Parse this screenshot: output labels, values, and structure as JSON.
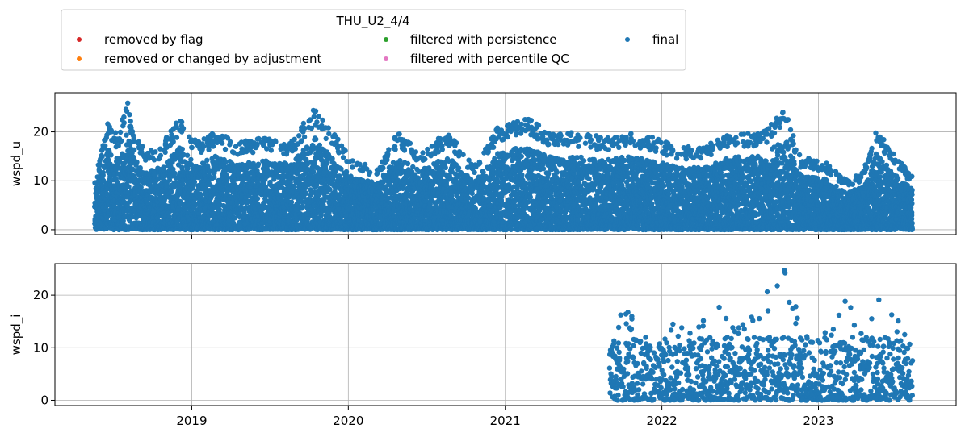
{
  "legend": {
    "title": "THU_U2_4/4",
    "entries": [
      {
        "label": "removed by flag",
        "color": "#d62728"
      },
      {
        "label": "removed or changed by adjustment",
        "color": "#ff7f0e"
      },
      {
        "label": "filtered with persistence",
        "color": "#2ca02c"
      },
      {
        "label": "filtered with percentile QC",
        "color": "#e377c2"
      },
      {
        "label": "final",
        "color": "#1f77b4"
      }
    ],
    "placement": "top-center, outside axes"
  },
  "chart_data": [
    {
      "type": "scatter",
      "ylabel": "wspd_u",
      "xlabel": "",
      "x_type": "date",
      "xlim": [
        "2018-02-16",
        "2023-11-18"
      ],
      "ylim": [
        -1,
        28
      ],
      "yticks": [
        0,
        10,
        20
      ],
      "xticks": [
        "2019",
        "2020",
        "2021",
        "2022",
        "2023"
      ],
      "grid": true,
      "series": [
        {
          "name": "final",
          "color": "#1f77b4",
          "date_range": [
            "2018-05-20",
            "2023-08-08"
          ],
          "envelope_max": [
            [
              "2018-05-20",
              10
            ],
            [
              "2018-06-01",
              15
            ],
            [
              "2018-06-20",
              22
            ],
            [
              "2018-07-15",
              19
            ],
            [
              "2018-08-03",
              27
            ],
            [
              "2018-08-20",
              19
            ],
            [
              "2018-09-20",
              16
            ],
            [
              "2018-10-20",
              17
            ],
            [
              "2018-12-05",
              23
            ],
            [
              "2019-01-15",
              18
            ],
            [
              "2019-02-25",
              20
            ],
            [
              "2019-04-20",
              18
            ],
            [
              "2019-06-20",
              19
            ],
            [
              "2019-08-20",
              18
            ],
            [
              "2019-10-15",
              25
            ],
            [
              "2019-11-25",
              20
            ],
            [
              "2020-01-15",
              14
            ],
            [
              "2020-03-10",
              13
            ],
            [
              "2020-04-25",
              20
            ],
            [
              "2020-06-15",
              16
            ],
            [
              "2020-08-20",
              20
            ],
            [
              "2020-10-20",
              13
            ],
            [
              "2020-12-15",
              21
            ],
            [
              "2021-01-20",
              22
            ],
            [
              "2021-02-20",
              23
            ],
            [
              "2021-04-15",
              20
            ],
            [
              "2021-06-15",
              20
            ],
            [
              "2021-08-15",
              19
            ],
            [
              "2021-10-15",
              20
            ],
            [
              "2021-12-10",
              19
            ],
            [
              "2022-02-10",
              17
            ],
            [
              "2022-04-10",
              17
            ],
            [
              "2022-06-15",
              20
            ],
            [
              "2022-08-25",
              20
            ],
            [
              "2022-10-15",
              25
            ],
            [
              "2022-11-20",
              15
            ],
            [
              "2023-01-15",
              14
            ],
            [
              "2023-03-10",
              10
            ],
            [
              "2023-04-15",
              12
            ],
            [
              "2023-05-15",
              21
            ],
            [
              "2023-07-01",
              15
            ],
            [
              "2023-08-08",
              11
            ]
          ],
          "envelope_min": 0
        }
      ]
    },
    {
      "type": "scatter",
      "ylabel": "wspd_i",
      "xlabel": "",
      "x_type": "date",
      "xlim": [
        "2018-02-16",
        "2023-11-18"
      ],
      "ylim": [
        -1,
        26
      ],
      "yticks": [
        0,
        10,
        20
      ],
      "xticks": [
        "2019",
        "2020",
        "2021",
        "2022",
        "2023"
      ],
      "grid": true,
      "series": [
        {
          "name": "final",
          "color": "#1f77b4",
          "date_range": [
            "2021-09-01",
            "2023-08-08"
          ],
          "envelope_max": [
            [
              "2021-09-01",
              11
            ],
            [
              "2021-10-01",
              19
            ],
            [
              "2021-11-15",
              13
            ],
            [
              "2021-12-20",
              9
            ],
            [
              "2022-01-15",
              16
            ],
            [
              "2022-03-15",
              13
            ],
            [
              "2022-05-01",
              19
            ],
            [
              "2022-06-20",
              15
            ],
            [
              "2022-08-15",
              19
            ],
            [
              "2022-10-15",
              25
            ],
            [
              "2022-11-20",
              15
            ],
            [
              "2023-01-15",
              13
            ],
            [
              "2023-03-10",
              20
            ],
            [
              "2023-04-15",
              12
            ],
            [
              "2023-05-15",
              22
            ],
            [
              "2023-07-01",
              16
            ],
            [
              "2023-08-08",
              10
            ]
          ],
          "envelope_min": 0
        }
      ]
    }
  ]
}
